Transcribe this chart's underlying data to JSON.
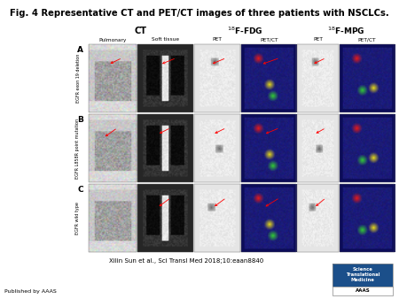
{
  "title": "Fig. 4 Representative CT and PET/CT images of three patients with NSCLCs.",
  "title_fontsize": 7.5,
  "title_fontweight": "bold",
  "citation": "Xilin Sun et al., Sci Transl Med 2018;10:eaan8840",
  "published_by": "Published by AAAS",
  "col_group_labels": [
    "CT",
    "$^{18}$F-FDG",
    "$^{18}$F-MPG"
  ],
  "sub_headers": [
    "Pulmonary",
    "Soft tissue",
    "PET",
    "PET/CT",
    "PET",
    "PET/CT"
  ],
  "row_labels": [
    "A",
    "B",
    "C"
  ],
  "row_side_labels": [
    "EGFR exon 19 deletion",
    "EGFR L858R point mutation",
    "EGFR wild type"
  ],
  "bg_color": "#ffffff",
  "journal_blue": "#1b4f8a",
  "journal_text": "Science\nTranslational\nMedicine",
  "journal_logo_text": "AAAS"
}
